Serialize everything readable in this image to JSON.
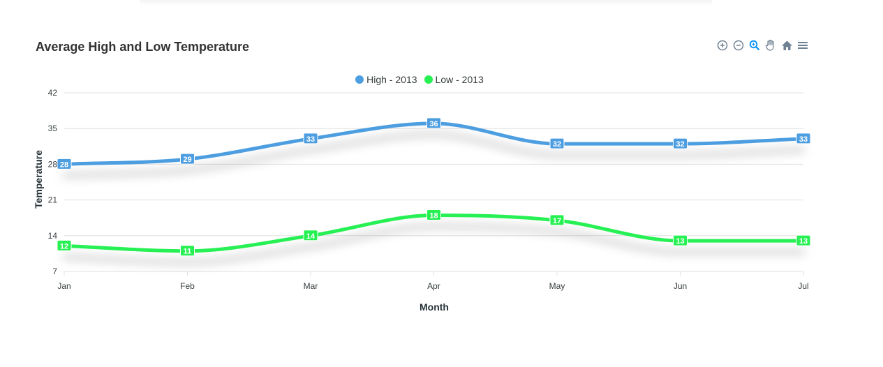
{
  "toolbar": {
    "icons": [
      "zoom-in-icon",
      "zoom-out-icon",
      "selection-zoom-icon",
      "pan-hand-icon",
      "reset-home-icon",
      "menu-icon"
    ]
  },
  "chart_data": {
    "type": "line",
    "title": "Average High and Low Temperature",
    "xlabel": "Month",
    "ylabel": "Temperature",
    "categories": [
      "Jan",
      "Feb",
      "Mar",
      "Apr",
      "May",
      "Jun",
      "Jul"
    ],
    "series": [
      {
        "name": "High - 2013",
        "color": "#4d9ee0",
        "values": [
          28,
          29,
          33,
          36,
          32,
          32,
          33
        ]
      },
      {
        "name": "Low - 2013",
        "color": "#26f052",
        "values": [
          12,
          11,
          14,
          18,
          17,
          13,
          13
        ]
      }
    ],
    "ylim": [
      7,
      42
    ],
    "yticks": [
      7,
      14,
      21,
      28,
      35,
      42
    ],
    "grid": true,
    "legend_position": "top",
    "curve": "smooth",
    "data_labels": true
  }
}
